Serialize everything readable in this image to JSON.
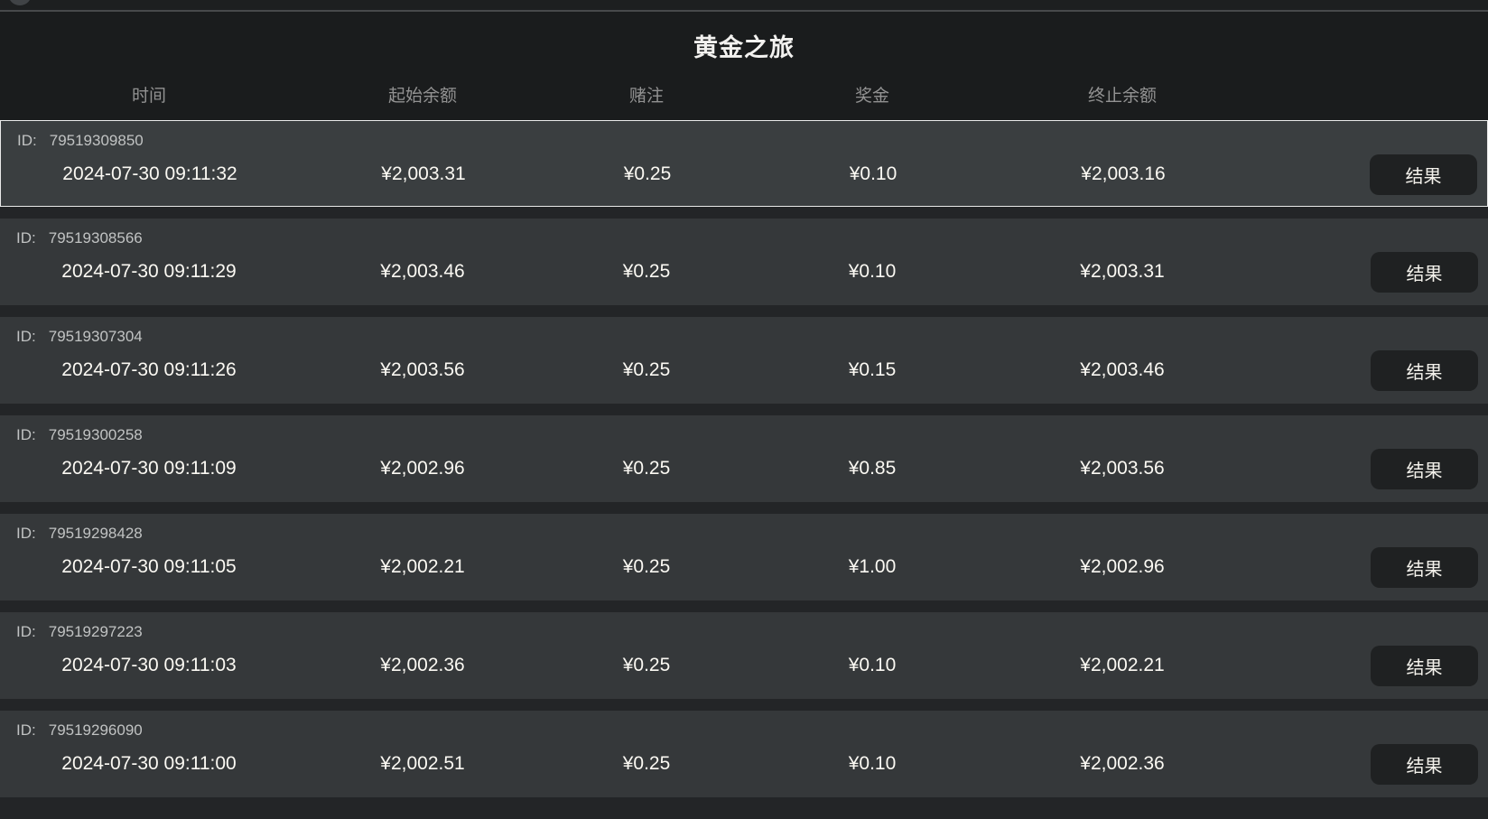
{
  "title": "黄金之旅",
  "columns": {
    "time": "时间",
    "start_balance": "起始余额",
    "bet": "赌注",
    "prize": "奖金",
    "end_balance": "终止余额"
  },
  "id_prefix": "ID:",
  "result_button_label": "结果",
  "colors": {
    "page_background": "#232527",
    "header_background": "#1a1c1d",
    "row_background": "#35383a",
    "selected_row_border": "#e9e9e9",
    "button_background": "#1f2122",
    "value_text": "#fbf9f3",
    "muted_text": "#929292"
  },
  "rows": [
    {
      "id": "79519309850",
      "time": "2024-07-30 09:11:32",
      "start_balance": "¥2,003.31",
      "bet": "¥0.25",
      "prize": "¥0.10",
      "end_balance": "¥2,003.16",
      "selected": true
    },
    {
      "id": "79519308566",
      "time": "2024-07-30 09:11:29",
      "start_balance": "¥2,003.46",
      "bet": "¥0.25",
      "prize": "¥0.10",
      "end_balance": "¥2,003.31",
      "selected": false
    },
    {
      "id": "79519307304",
      "time": "2024-07-30 09:11:26",
      "start_balance": "¥2,003.56",
      "bet": "¥0.25",
      "prize": "¥0.15",
      "end_balance": "¥2,003.46",
      "selected": false
    },
    {
      "id": "79519300258",
      "time": "2024-07-30 09:11:09",
      "start_balance": "¥2,002.96",
      "bet": "¥0.25",
      "prize": "¥0.85",
      "end_balance": "¥2,003.56",
      "selected": false
    },
    {
      "id": "79519298428",
      "time": "2024-07-30 09:11:05",
      "start_balance": "¥2,002.21",
      "bet": "¥0.25",
      "prize": "¥1.00",
      "end_balance": "¥2,002.96",
      "selected": false
    },
    {
      "id": "79519297223",
      "time": "2024-07-30 09:11:03",
      "start_balance": "¥2,002.36",
      "bet": "¥0.25",
      "prize": "¥0.10",
      "end_balance": "¥2,002.21",
      "selected": false
    },
    {
      "id": "79519296090",
      "time": "2024-07-30 09:11:00",
      "start_balance": "¥2,002.51",
      "bet": "¥0.25",
      "prize": "¥0.10",
      "end_balance": "¥2,002.36",
      "selected": false
    }
  ]
}
